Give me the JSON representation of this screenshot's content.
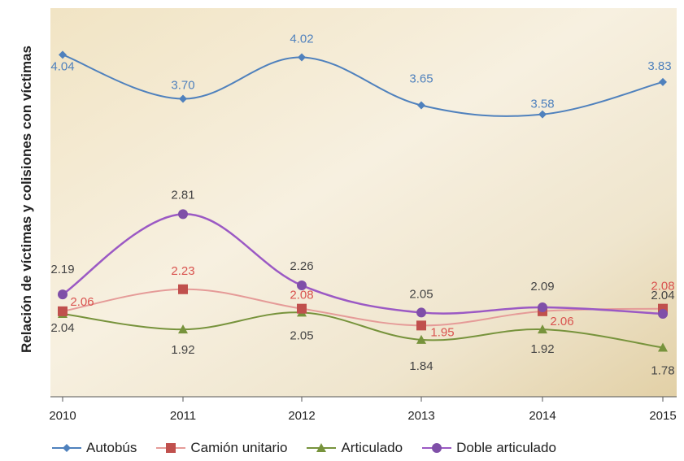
{
  "chart_data": {
    "type": "line",
    "title": "",
    "xlabel": "",
    "ylabel": "Relación de víctimas y colisiones con víctimas",
    "x": [
      "2010",
      "2011",
      "2012",
      "2013",
      "2014",
      "2015"
    ],
    "ylim": [
      1.4,
      4.4
    ],
    "legend_position": "bottom",
    "grid": false,
    "series": [
      {
        "name": "Autobús",
        "color": "#4f81bd",
        "marker": "diamond",
        "values": [
          4.04,
          3.7,
          4.02,
          3.65,
          3.58,
          3.83
        ],
        "labels": [
          "4.04",
          "3.70",
          "4.02",
          "3.65",
          "3.58",
          "3.83"
        ]
      },
      {
        "name": "Camión unitario",
        "color": "#c0504d",
        "marker": "square",
        "values": [
          2.06,
          2.23,
          2.08,
          1.95,
          2.06,
          2.08
        ],
        "labels": [
          "2.06",
          "2.23",
          "2.08",
          "1.95",
          "2.06",
          "2.08"
        ]
      },
      {
        "name": "Articulado",
        "color": "#77933c",
        "marker": "triangle",
        "values": [
          2.04,
          1.92,
          2.05,
          1.84,
          1.92,
          1.78
        ],
        "labels": [
          "2.04",
          "1.92",
          "2.05",
          "1.84",
          "1.92",
          "1.78"
        ]
      },
      {
        "name": "Doble articulado",
        "color": "#7f4fa8",
        "marker": "circle",
        "values": [
          2.19,
          2.81,
          2.26,
          2.05,
          2.09,
          2.04
        ],
        "labels": [
          "2.19",
          "2.81",
          "2.26",
          "2.05",
          "2.09",
          "2.04"
        ]
      }
    ]
  }
}
